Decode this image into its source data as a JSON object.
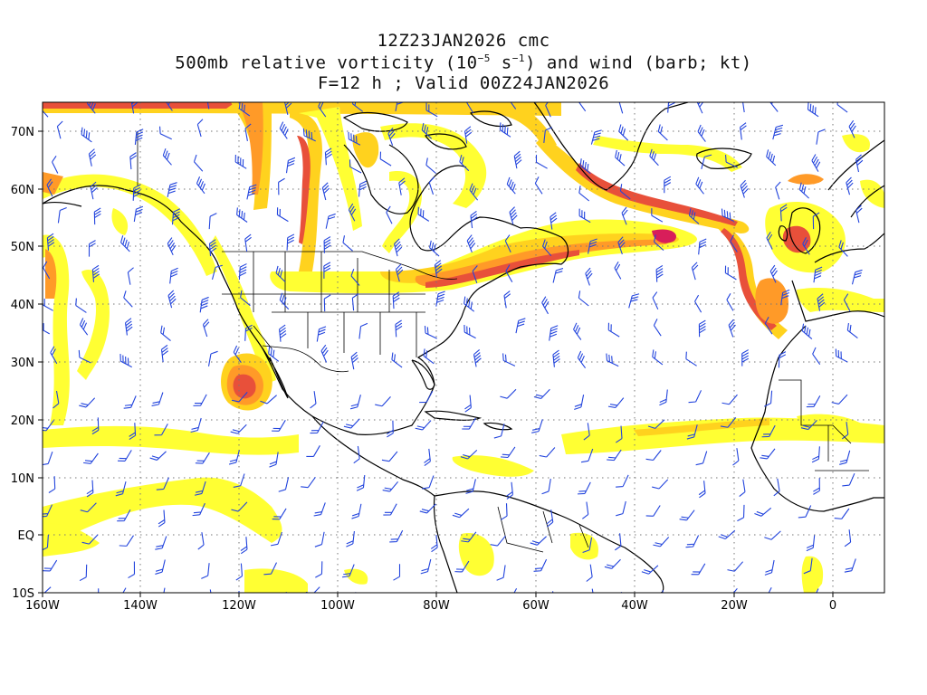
{
  "title": {
    "line1": "12Z23JAN2026 cmc",
    "line2_pre": "500mb relative vorticity (10",
    "line2_exp1": "−5",
    "line2_mid": " s",
    "line2_exp2": "−1",
    "line2_post": ") and wind (barb; kt)",
    "line3": "F=12 h ; Valid 00Z24JAN2026"
  },
  "axes": {
    "lon_labels": [
      "160W",
      "140W",
      "120W",
      "100W",
      "80W",
      "60W",
      "40W",
      "20W",
      "0"
    ],
    "lat_labels": [
      "70N",
      "60N",
      "50N",
      "40N",
      "30N",
      "20N",
      "10N",
      "EQ",
      "10S"
    ]
  },
  "colors": {
    "vort_low": "#ffff33",
    "vort_mid": "#ffd21e",
    "vort_high": "#ff9a28",
    "vort_max": "#e8503a",
    "vort_peak": "#d81e5a",
    "barb": "#2244dd",
    "coast": "#000000",
    "grid": "#777777"
  },
  "icons": [
    "wind-barb-icon"
  ]
}
